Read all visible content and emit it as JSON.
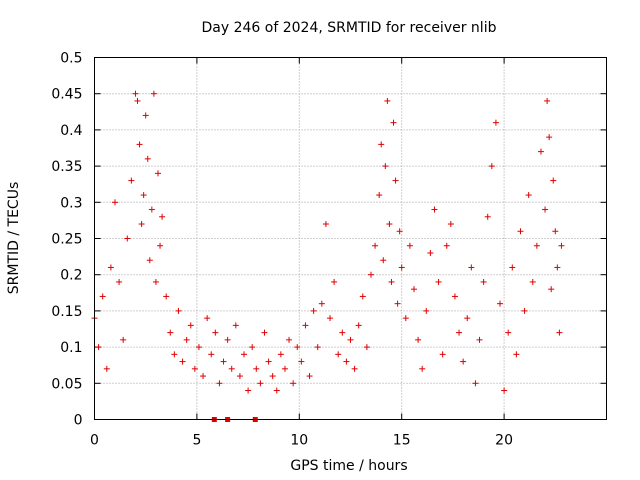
{
  "chart_data": {
    "type": "scatter",
    "title": "Day 246 of 2024, SRMTID for receiver nlib",
    "xlabel": "GPS time / hours",
    "ylabel": "SRMTID / TECUs",
    "xlim": [
      0,
      25
    ],
    "ylim": [
      0,
      0.5
    ],
    "x_ticks": [
      "0",
      "5",
      "10",
      "15",
      "20"
    ],
    "y_ticks": [
      "0",
      "0.05",
      "0.1",
      "0.15",
      "0.2",
      "0.25",
      "0.3",
      "0.35",
      "0.4",
      "0.45",
      "0.5"
    ],
    "grid": true,
    "marker": "plus",
    "color": "#e00000",
    "series": [
      {
        "x": [
          0.0,
          0.2,
          0.4,
          0.6,
          0.8,
          1.0,
          1.2,
          1.4,
          1.6,
          1.8,
          2.0,
          2.1,
          2.2,
          2.3,
          2.4,
          2.5,
          2.6,
          2.7,
          2.8,
          2.9,
          3.0,
          3.1,
          3.2,
          3.3,
          3.5,
          3.7,
          3.9,
          4.1,
          4.3,
          4.5,
          4.7,
          4.9,
          5.1,
          5.3,
          5.5,
          5.7,
          5.9,
          6.1,
          6.3,
          6.5,
          6.7,
          6.9,
          7.1,
          7.3,
          7.5,
          7.7,
          7.9,
          8.1,
          8.3,
          8.5,
          8.7,
          8.9,
          9.1,
          9.3,
          9.5,
          9.7,
          9.9,
          10.1,
          10.3,
          10.5,
          10.7,
          10.9,
          11.1,
          11.3,
          11.5,
          11.7,
          11.9,
          12.1,
          12.3,
          12.5,
          12.7,
          12.9,
          13.1,
          13.3,
          13.5,
          13.7,
          13.9,
          14.0,
          14.1,
          14.2,
          14.3,
          14.4,
          14.5,
          14.6,
          14.7,
          14.8,
          14.9,
          15.0,
          15.2,
          15.4,
          15.6,
          15.8,
          16.0,
          16.2,
          16.4,
          16.6,
          16.8,
          17.0,
          17.2,
          17.4,
          17.6,
          17.8,
          18.0,
          18.2,
          18.4,
          18.6,
          18.8,
          19.0,
          19.2,
          19.4,
          19.6,
          19.8,
          20.0,
          20.2,
          20.4,
          20.6,
          20.8,
          21.0,
          21.2,
          21.4,
          21.6,
          21.8,
          22.0,
          22.1,
          22.2,
          22.3,
          22.4,
          22.5,
          22.6,
          22.7,
          22.8
        ],
        "y": [
          0.14,
          0.1,
          0.17,
          0.07,
          0.21,
          0.3,
          0.19,
          0.11,
          0.25,
          0.33,
          0.45,
          0.44,
          0.38,
          0.27,
          0.31,
          0.42,
          0.36,
          0.22,
          0.29,
          0.45,
          0.19,
          0.34,
          0.24,
          0.28,
          0.17,
          0.12,
          0.09,
          0.15,
          0.08,
          0.11,
          0.13,
          0.07,
          0.1,
          0.06,
          0.14,
          0.09,
          0.12,
          0.05,
          0.08,
          0.11,
          0.07,
          0.13,
          0.06,
          0.09,
          0.04,
          0.1,
          0.07,
          0.05,
          0.12,
          0.08,
          0.06,
          0.04,
          0.09,
          0.07,
          0.11,
          0.05,
          0.1,
          0.08,
          0.13,
          0.06,
          0.15,
          0.1,
          0.16,
          0.27,
          0.14,
          0.19,
          0.09,
          0.12,
          0.08,
          0.11,
          0.07,
          0.13,
          0.17,
          0.1,
          0.2,
          0.24,
          0.31,
          0.38,
          0.22,
          0.35,
          0.44,
          0.27,
          0.19,
          0.41,
          0.33,
          0.16,
          0.26,
          0.21,
          0.14,
          0.24,
          0.18,
          0.11,
          0.07,
          0.15,
          0.23,
          0.29,
          0.19,
          0.09,
          0.24,
          0.27,
          0.17,
          0.12,
          0.08,
          0.14,
          0.21,
          0.05,
          0.11,
          0.19,
          0.28,
          0.35,
          0.41,
          0.16,
          0.04,
          0.12,
          0.21,
          0.09,
          0.26,
          0.15,
          0.31,
          0.19,
          0.24,
          0.37,
          0.29,
          0.44,
          0.39,
          0.18,
          0.33,
          0.26,
          0.21,
          0.12,
          0.24
        ]
      }
    ],
    "zero_markers_x": [
      5.85,
      6.5,
      7.85
    ]
  }
}
